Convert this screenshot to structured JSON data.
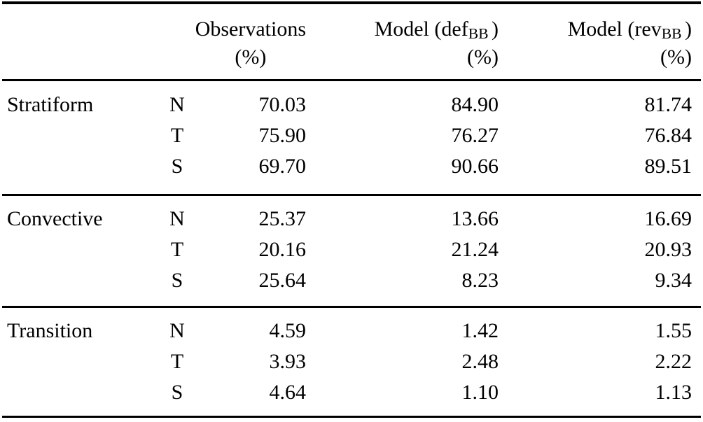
{
  "table": {
    "columns": {
      "observations": {
        "label": "Observations",
        "unit": "(%)"
      },
      "model_def": {
        "prefix": "Model (def",
        "sub": "BB",
        "suffix": ")",
        "unit": "(%)"
      },
      "model_rev": {
        "prefix": "Model (rev",
        "sub": "BB",
        "suffix": ")",
        "unit": "(%)"
      }
    },
    "sections": [
      {
        "category": "Stratiform",
        "rows": [
          {
            "key": "N",
            "obs": "70.03",
            "def": "84.90",
            "rev": "81.74"
          },
          {
            "key": "T",
            "obs": "75.90",
            "def": "76.27",
            "rev": "76.84"
          },
          {
            "key": "S",
            "obs": "69.70",
            "def": "90.66",
            "rev": "89.51"
          }
        ]
      },
      {
        "category": "Convective",
        "rows": [
          {
            "key": "N",
            "obs": "25.37",
            "def": "13.66",
            "rev": "16.69"
          },
          {
            "key": "T",
            "obs": "20.16",
            "def": "21.24",
            "rev": "20.93"
          },
          {
            "key": "S",
            "obs": "25.64",
            "def": "8.23",
            "rev": "9.34"
          }
        ]
      },
      {
        "category": "Transition",
        "rows": [
          {
            "key": "N",
            "obs": "4.59",
            "def": "1.42",
            "rev": "1.55"
          },
          {
            "key": "T",
            "obs": "3.93",
            "def": "2.48",
            "rev": "2.22"
          },
          {
            "key": "S",
            "obs": "4.64",
            "def": "1.10",
            "rev": "1.13"
          }
        ]
      }
    ],
    "colors": {
      "text": "#000000",
      "rule": "#000000",
      "background": "#ffffff"
    }
  }
}
